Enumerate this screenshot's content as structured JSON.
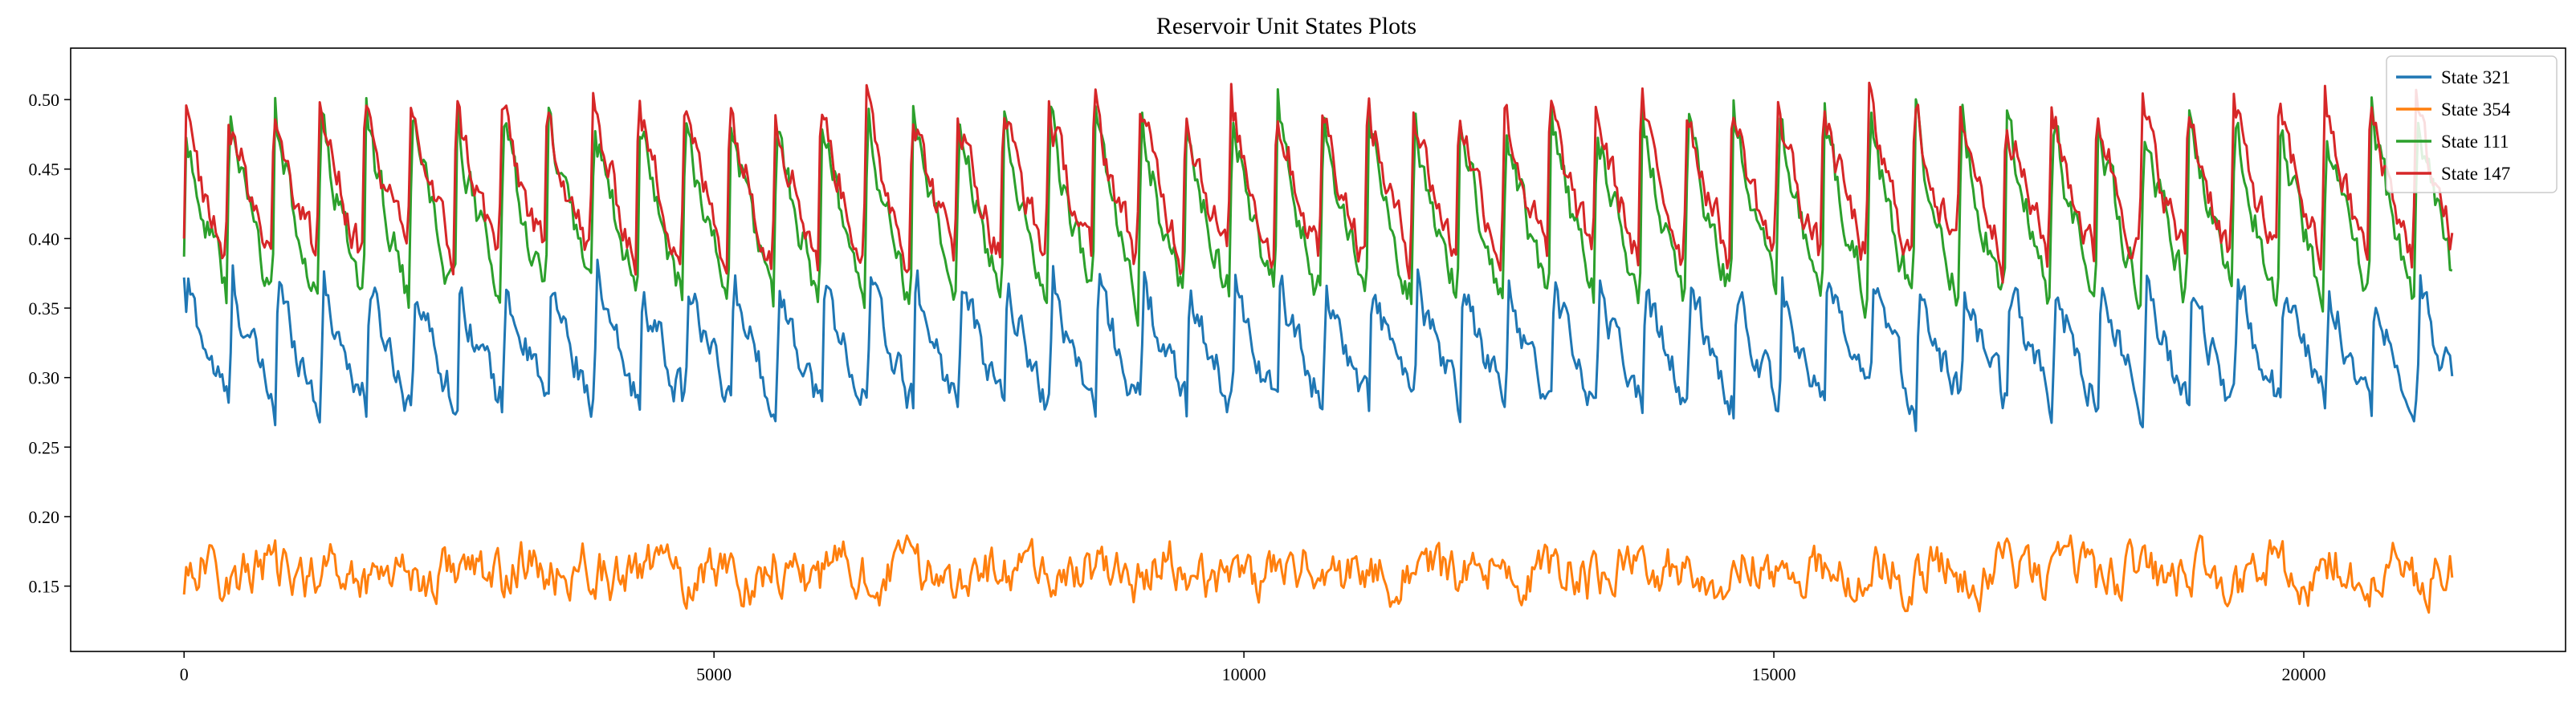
{
  "chart_data": {
    "type": "line",
    "title": "Reservoir Unit States Plots",
    "xlabel": "",
    "ylabel": "",
    "xlim": [
      -1070,
      22470
    ],
    "ylim": [
      0.103,
      0.537
    ],
    "x_ticks": [
      0,
      5000,
      10000,
      15000,
      20000
    ],
    "y_ticks": [
      0.15,
      0.2,
      0.25,
      0.3,
      0.35,
      0.4,
      0.45,
      0.5
    ],
    "grid": false,
    "legend_position": "top-right",
    "x_max": 21400,
    "cycle_period": 430,
    "series": [
      {
        "name": "State 321",
        "color": "#1f77b4",
        "baseline": 0.31,
        "peak": 0.37,
        "trough": 0.275,
        "noise": 0.015
      },
      {
        "name": "State 354",
        "color": "#ff7f0e",
        "baseline": 0.16,
        "peak": 0.2,
        "trough": 0.125,
        "noise": 0.018
      },
      {
        "name": "State 111",
        "color": "#2ca02c",
        "baseline": 0.41,
        "peak": 0.49,
        "trough": 0.35,
        "noise": 0.015
      },
      {
        "name": "State 147",
        "color": "#d62728",
        "baseline": 0.43,
        "peak": 0.5,
        "trough": 0.38,
        "noise": 0.015
      }
    ]
  }
}
